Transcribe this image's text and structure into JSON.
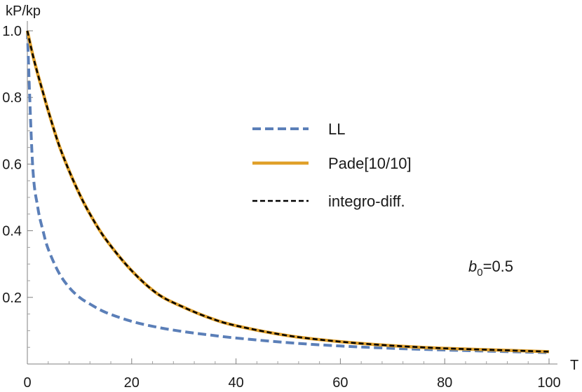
{
  "chart_data": {
    "type": "line",
    "title": "",
    "xlabel": "T",
    "ylabel": "kP/kp",
    "xlim": [
      0,
      100
    ],
    "ylim": [
      0,
      1.0
    ],
    "x_ticks": [
      0,
      20,
      40,
      60,
      80,
      100
    ],
    "y_ticks": [
      0.2,
      0.4,
      0.6,
      0.8,
      1.0
    ],
    "x_tick_labels": [
      "0",
      "20",
      "40",
      "60",
      "80",
      "100"
    ],
    "y_tick_labels": [
      "0.2",
      "0.4",
      "0.6",
      "0.8",
      "1.0"
    ],
    "grid": false,
    "legend_position": "center-right",
    "annotation": {
      "symbol": "b",
      "subscript": "0",
      "text": "=0.5"
    },
    "series": [
      {
        "name": "LL",
        "color": "#5b7fb8",
        "style": "dashed",
        "x": [
          0,
          1,
          2,
          3,
          4,
          6,
          8,
          10,
          12,
          15,
          20,
          25,
          30,
          35,
          40,
          50,
          60,
          70,
          80,
          90,
          100
        ],
        "y": [
          1.0,
          0.6,
          0.47,
          0.4,
          0.345,
          0.275,
          0.23,
          0.2,
          0.18,
          0.155,
          0.128,
          0.11,
          0.097,
          0.087,
          0.078,
          0.064,
          0.054,
          0.047,
          0.042,
          0.038,
          0.034
        ]
      },
      {
        "name": "Pade[10/10]",
        "color": "#e0a02a",
        "style": "solid",
        "x": [
          0,
          1,
          2,
          3,
          4,
          6,
          8,
          10,
          12,
          15,
          20,
          25,
          30,
          35,
          40,
          50,
          60,
          70,
          80,
          90,
          100
        ],
        "y": [
          1.0,
          0.93,
          0.87,
          0.815,
          0.76,
          0.66,
          0.58,
          0.51,
          0.45,
          0.375,
          0.28,
          0.21,
          0.17,
          0.138,
          0.115,
          0.085,
          0.067,
          0.055,
          0.047,
          0.042,
          0.037
        ]
      },
      {
        "name": "integro-diff.",
        "color": "#000000",
        "style": "dashed",
        "x": [
          0,
          1,
          2,
          3,
          4,
          6,
          8,
          10,
          12,
          15,
          20,
          25,
          30,
          35,
          40,
          50,
          60,
          70,
          80,
          90,
          100
        ],
        "y": [
          1.0,
          0.93,
          0.87,
          0.815,
          0.76,
          0.66,
          0.58,
          0.51,
          0.45,
          0.375,
          0.28,
          0.21,
          0.17,
          0.138,
          0.115,
          0.085,
          0.067,
          0.055,
          0.047,
          0.042,
          0.037
        ]
      }
    ]
  }
}
